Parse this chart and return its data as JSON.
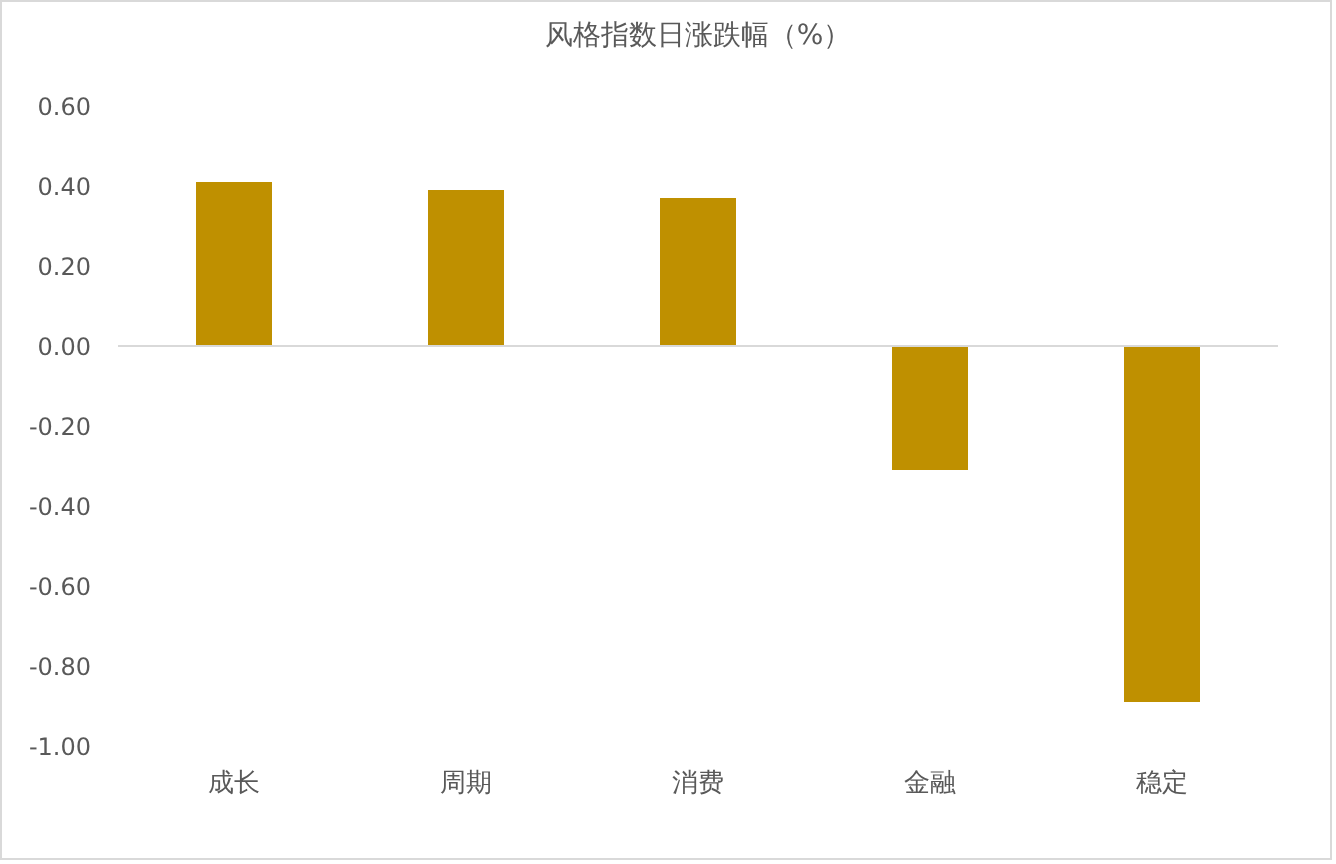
{
  "chart_data": {
    "type": "bar",
    "title": "风格指数日涨跌幅（%）",
    "categories": [
      "成长",
      "周期",
      "消费",
      "金融",
      "稳定"
    ],
    "values": [
      0.41,
      0.39,
      0.37,
      -0.31,
      -0.89
    ],
    "color": "#bf9000",
    "ylim": [
      -1.0,
      0.6
    ],
    "yticks": [
      {
        "value": -1.0,
        "label": "-1.00"
      },
      {
        "value": -0.8,
        "label": "-0.80"
      },
      {
        "value": -0.6,
        "label": "-0.60"
      },
      {
        "value": -0.4,
        "label": "-0.40"
      },
      {
        "value": -0.2,
        "label": "-0.20"
      },
      {
        "value": 0,
        "label": "0.00"
      },
      {
        "value": 0.2,
        "label": "0.20"
      },
      {
        "value": 0.4,
        "label": "0.40"
      },
      {
        "value": 0.6,
        "label": "0.60"
      }
    ],
    "ref_lines": [
      {
        "axis": "y",
        "value": 0,
        "color": "#d9d9d9"
      }
    ]
  }
}
